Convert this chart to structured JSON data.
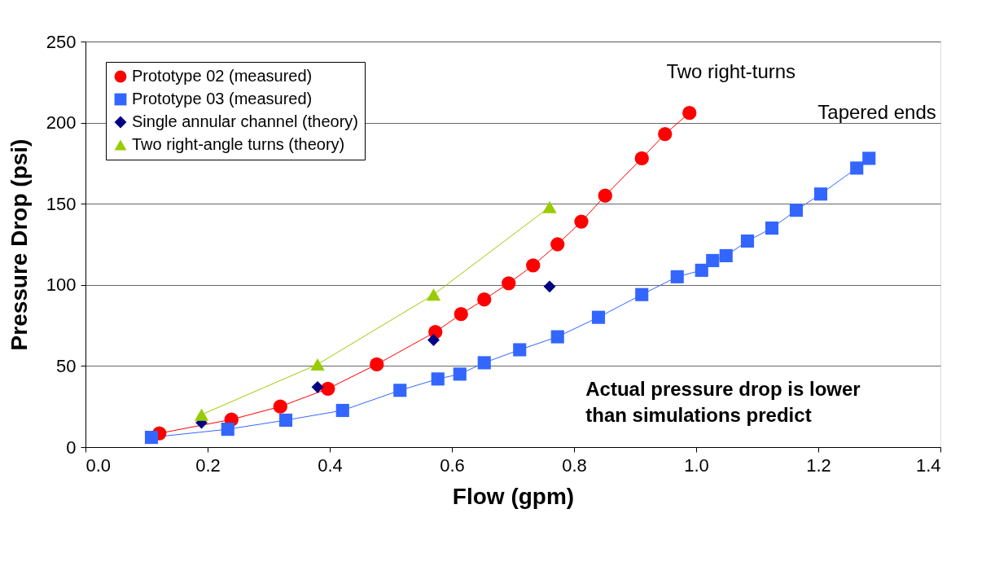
{
  "chart_data": {
    "type": "line",
    "xlabel": "Flow (gpm)",
    "ylabel": "Pressure Drop (psi)",
    "xlim": [
      0,
      1.4
    ],
    "xticks": [
      {
        "value": 0,
        "label": "0.0"
      },
      {
        "value": 0.2,
        "label": "0.2"
      },
      {
        "value": 0.4,
        "label": "0.4"
      },
      {
        "value": 0.6,
        "label": "0.6"
      },
      {
        "value": 0.8,
        "label": "0.8"
      },
      {
        "value": 1.0,
        "label": "1.0"
      },
      {
        "value": 1.2,
        "label": "1.2"
      },
      {
        "value": 1.4,
        "label": "1.4"
      }
    ],
    "ylim": [
      0,
      250
    ],
    "yticks": [
      0,
      50,
      100,
      150,
      200,
      250
    ],
    "grid": "y",
    "legend": "top left",
    "line_style": "solid",
    "series": [
      {
        "name": "Prototype 02 (measured)",
        "marker": "circle",
        "color": "#ff0000",
        "x": [
          0.121,
          0.239,
          0.319,
          0.397,
          0.477,
          0.573,
          0.615,
          0.653,
          0.693,
          0.733,
          0.773,
          0.812,
          0.851,
          0.911,
          0.949,
          0.989
        ],
        "values": [
          8.5,
          17,
          25,
          36,
          51,
          71,
          82,
          91,
          101,
          112,
          125,
          139,
          155,
          178,
          193,
          206
        ]
      },
      {
        "name": "Prototype 03 (measured)",
        "marker": "square",
        "color": "#3366ff",
        "x": [
          0.108,
          0.233,
          0.328,
          0.421,
          0.515,
          0.577,
          0.613,
          0.653,
          0.711,
          0.773,
          0.84,
          0.911,
          0.969,
          1.009,
          1.027,
          1.049,
          1.084,
          1.124,
          1.164,
          1.204,
          1.263,
          1.283
        ],
        "values": [
          6,
          11,
          16.6,
          22.6,
          35,
          42,
          45,
          52,
          60,
          68,
          80,
          94,
          105,
          109,
          115,
          118,
          127,
          135,
          146,
          156,
          172,
          178
        ]
      },
      {
        "name": "Single annular channel (theory)",
        "type": "scatter",
        "marker": "diamond",
        "color": "#000080",
        "x": [
          0.19,
          0.38,
          0.57,
          0.76
        ],
        "values": [
          15,
          37,
          66,
          99
        ]
      },
      {
        "name": "Two right-angle turns (theory)",
        "marker": "triangle",
        "color": "#99cc00",
        "x": [
          0.19,
          0.38,
          0.57,
          0.76
        ],
        "values": [
          20,
          51,
          94,
          148
        ]
      }
    ],
    "annotations": [
      "Two right-turns",
      "Tapered ends",
      "Actual pressure drop is lower\nthan simulations predict"
    ]
  }
}
